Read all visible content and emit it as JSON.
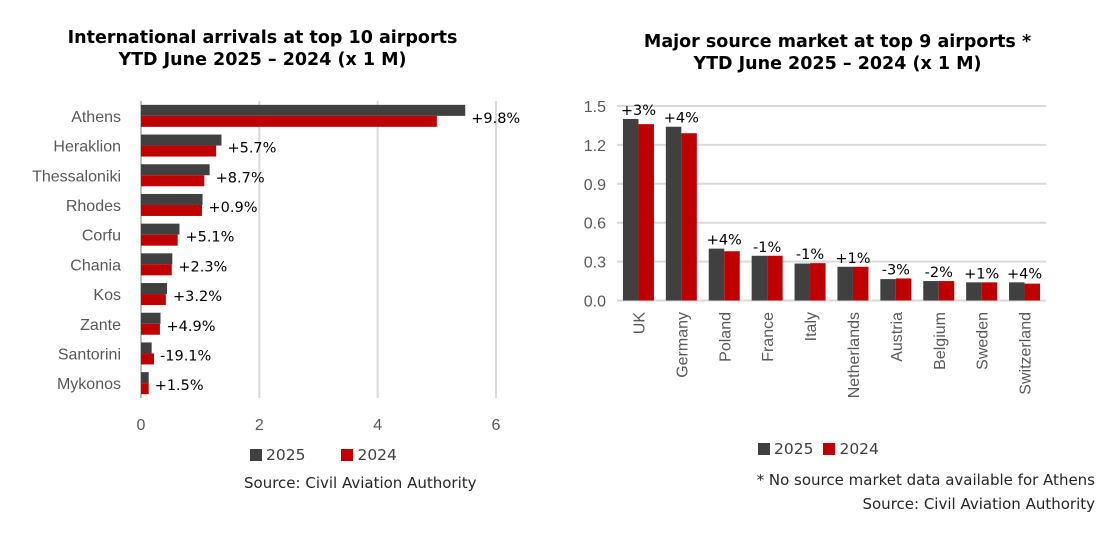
{
  "colors": {
    "s2025": "#404040",
    "s2024": "#c00000",
    "neg_label": "#e8202a",
    "pos_label": "#000000",
    "grid": "#d9d9d9"
  },
  "chart_data": [
    {
      "type": "bar",
      "orientation": "horizontal",
      "title": "International arrivals at top 10 airports",
      "subtitle": "YTD June 2025 – 2024 (x 1 M)",
      "categories": [
        "Athens",
        "Heraklion",
        "Thessaloniki",
        "Rhodes",
        "Corfu",
        "Chania",
        "Kos",
        "Zante",
        "Santorini",
        "Mykonos"
      ],
      "series": [
        {
          "name": "2025",
          "values": [
            5.48,
            1.36,
            1.16,
            1.04,
            0.65,
            0.53,
            0.44,
            0.33,
            0.18,
            0.13
          ]
        },
        {
          "name": "2024",
          "values": [
            5.0,
            1.27,
            1.07,
            1.03,
            0.62,
            0.52,
            0.42,
            0.32,
            0.22,
            0.13
          ]
        }
      ],
      "data_labels": [
        "+9.8%",
        "+5.7%",
        "+8.7%",
        "+0.9%",
        "+5.1%",
        "+2.3%",
        "+3.2%",
        "+4.9%",
        "-19.1%",
        "+1.5%"
      ],
      "xlim": [
        0,
        6
      ],
      "xticks": [
        "0",
        "2",
        "4",
        "6"
      ],
      "grid": true,
      "legend": "bottom",
      "source": "Source: Civil Aviation Authority"
    },
    {
      "type": "bar",
      "orientation": "vertical",
      "title": "Major source market at top 9 airports *",
      "subtitle": "YTD June 2025 – 2024 (x 1 M)",
      "categories": [
        "UK",
        "Germany",
        "Poland",
        "France",
        "Italy",
        "Netherlands",
        "Austria",
        "Belgium",
        "Sweden",
        "Switzerland"
      ],
      "series": [
        {
          "name": "2025",
          "values": [
            1.4,
            1.34,
            0.4,
            0.345,
            0.285,
            0.26,
            0.165,
            0.15,
            0.14,
            0.14
          ]
        },
        {
          "name": "2024",
          "values": [
            1.36,
            1.29,
            0.38,
            0.345,
            0.288,
            0.26,
            0.17,
            0.15,
            0.14,
            0.13
          ]
        }
      ],
      "data_labels": [
        "+3%",
        "+4%",
        "+4%",
        "-1%",
        "-1%",
        "+1%",
        "-3%",
        "-2%",
        "+1%",
        "+4%"
      ],
      "ylim": [
        0,
        1.5
      ],
      "yticks": [
        "0.0",
        "0.3",
        "0.6",
        "0.9",
        "1.2",
        "1.5"
      ],
      "grid": true,
      "legend": "bottom",
      "note": "* No source market data available for Athens",
      "source": "Source: Civil Aviation Authority"
    }
  ]
}
